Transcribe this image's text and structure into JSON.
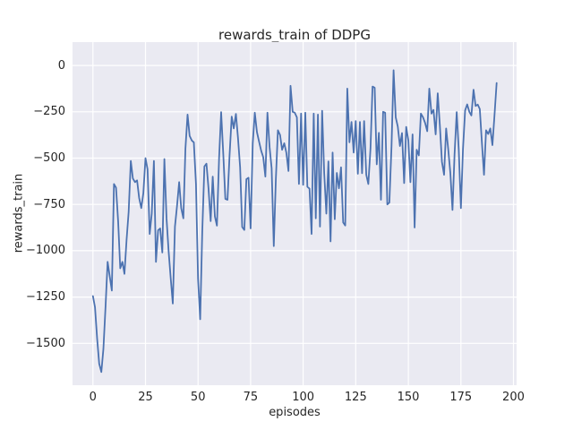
{
  "figure": {
    "title": "rewards_train of DDPG",
    "xlabel": "episodes",
    "ylabel": "rewards_train",
    "colors": {
      "figure_background": "#ffffff",
      "axes_background": "#eaeaf2",
      "grid": "#ffffff",
      "line": "#4c72b0",
      "text": "#262626"
    }
  },
  "chart_data": {
    "type": "line",
    "title": "rewards_train of DDPG",
    "xlabel": "episodes",
    "ylabel": "rewards_train",
    "legend": null,
    "grid": true,
    "xlim": [
      -9.7,
      201.5
    ],
    "ylim": [
      -1726,
      126
    ],
    "x_ticks": [
      {
        "value": 0,
        "label": "0"
      },
      {
        "value": 25,
        "label": "25"
      },
      {
        "value": 50,
        "label": "50"
      },
      {
        "value": 75,
        "label": "75"
      },
      {
        "value": 100,
        "label": "100"
      },
      {
        "value": 125,
        "label": "125"
      },
      {
        "value": 150,
        "label": "150"
      },
      {
        "value": 175,
        "label": "175"
      },
      {
        "value": 200,
        "label": "200"
      }
    ],
    "y_ticks": [
      {
        "value": 0,
        "label": "0"
      },
      {
        "value": -250,
        "label": "−250"
      },
      {
        "value": -500,
        "label": "−500"
      },
      {
        "value": -750,
        "label": "−750"
      },
      {
        "value": -1000,
        "label": "−1000"
      },
      {
        "value": -1250,
        "label": "−1250"
      },
      {
        "value": -1500,
        "label": "−1500"
      }
    ],
    "series": [
      {
        "name": "rewards_train",
        "color": "#4c72b0",
        "x_start": 0,
        "x_step": 1,
        "values": [
          -1245,
          -1305,
          -1475,
          -1610,
          -1655,
          -1530,
          -1300,
          -1060,
          -1140,
          -1215,
          -640,
          -660,
          -845,
          -1095,
          -1060,
          -1125,
          -940,
          -790,
          -515,
          -610,
          -630,
          -620,
          -715,
          -770,
          -690,
          -500,
          -560,
          -910,
          -800,
          -515,
          -1060,
          -890,
          -880,
          -1010,
          -505,
          -825,
          -1000,
          -1150,
          -1285,
          -870,
          -760,
          -630,
          -770,
          -825,
          -450,
          -265,
          -380,
          -405,
          -415,
          -640,
          -1150,
          -1370,
          -900,
          -545,
          -530,
          -665,
          -840,
          -600,
          -815,
          -865,
          -500,
          -252,
          -480,
          -720,
          -725,
          -485,
          -276,
          -340,
          -262,
          -390,
          -550,
          -872,
          -888,
          -614,
          -606,
          -880,
          -420,
          -255,
          -360,
          -410,
          -460,
          -495,
          -600,
          -255,
          -440,
          -555,
          -975,
          -615,
          -350,
          -375,
          -455,
          -420,
          -470,
          -570,
          -110,
          -250,
          -255,
          -280,
          -640,
          -260,
          -645,
          -255,
          -655,
          -665,
          -910,
          -260,
          -825,
          -265,
          -870,
          -245,
          -580,
          -800,
          -518,
          -950,
          -470,
          -830,
          -580,
          -663,
          -550,
          -848,
          -864,
          -125,
          -415,
          -305,
          -470,
          -300,
          -585,
          -305,
          -582,
          -300,
          -590,
          -640,
          -450,
          -114,
          -120,
          -534,
          -364,
          -725,
          -250,
          -255,
          -750,
          -740,
          -437,
          -26,
          -280,
          -330,
          -435,
          -365,
          -635,
          -332,
          -405,
          -630,
          -372,
          -875,
          -455,
          -485,
          -260,
          -280,
          -310,
          -355,
          -125,
          -260,
          -240,
          -372,
          -150,
          -324,
          -520,
          -590,
          -340,
          -455,
          -580,
          -780,
          -480,
          -252,
          -455,
          -770,
          -453,
          -243,
          -210,
          -250,
          -270,
          -131,
          -219,
          -211,
          -235,
          -421,
          -590,
          -350,
          -370,
          -340,
          -430,
          -270,
          -95
        ]
      }
    ]
  }
}
